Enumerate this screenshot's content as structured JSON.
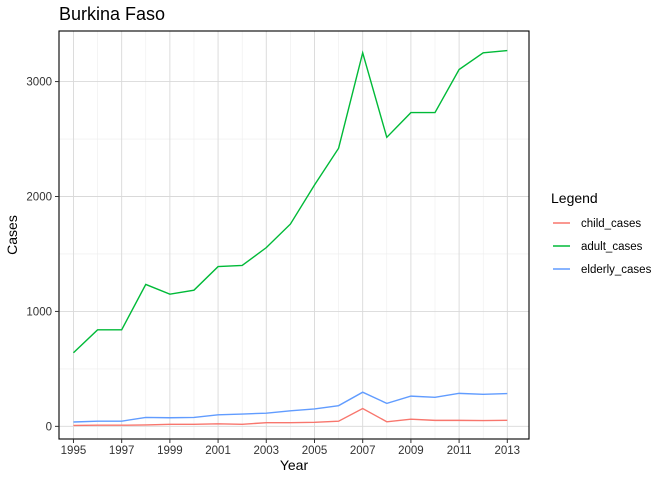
{
  "chart_data": {
    "type": "line",
    "title": "Burkina Faso",
    "xlabel": "Year",
    "ylabel": "Cases",
    "xlim": [
      1994.4,
      2013.9
    ],
    "ylim": [
      -110,
      3440
    ],
    "x": [
      1995,
      1996,
      1997,
      1998,
      1999,
      2000,
      2001,
      2002,
      2003,
      2004,
      2005,
      2006,
      2007,
      2008,
      2009,
      2010,
      2011,
      2012,
      2013
    ],
    "x_ticks": [
      1995,
      1997,
      1999,
      2001,
      2003,
      2005,
      2007,
      2009,
      2011,
      2013
    ],
    "y_ticks": [
      0,
      1000,
      2000,
      3000
    ],
    "grid": true,
    "legend": {
      "title": "Legend",
      "position": "right"
    },
    "series": [
      {
        "name": "child_cases",
        "color": "#F8766D",
        "values": [
          8,
          10,
          10,
          12,
          18,
          18,
          22,
          18,
          32,
          32,
          35,
          45,
          155,
          40,
          62,
          52,
          52,
          50,
          53
        ]
      },
      {
        "name": "adult_cases",
        "color": "#00BA38",
        "values": [
          640,
          840,
          840,
          1235,
          1150,
          1185,
          1390,
          1400,
          1555,
          1760,
          2100,
          2420,
          3250,
          2515,
          2730,
          2730,
          3105,
          3250,
          3270
        ]
      },
      {
        "name": "elderly_cases",
        "color": "#619CFF",
        "values": [
          38,
          45,
          45,
          78,
          75,
          78,
          100,
          107,
          115,
          135,
          152,
          180,
          297,
          200,
          263,
          253,
          287,
          279,
          285
        ]
      }
    ]
  }
}
